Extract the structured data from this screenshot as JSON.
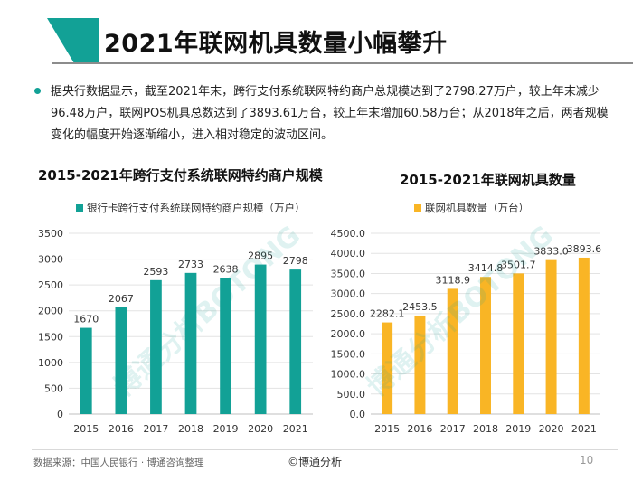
{
  "header": {
    "title": "2021年联网机具数量小幅攀升"
  },
  "summary": "据央行数据显示，截至2021年末，跨行支付系统联网特约商户总规模达到了2798.27万户，较上年末减少96.48万户，联网POS机具总数达到了3893.61万台，较上年末增加60.58万台；从2018年之后，两者规模变化的幅度开始逐渐缩小，进入相对稳定的波动区间。",
  "colors": {
    "accent": "#12a196",
    "bar_left": "#12a196",
    "bar_right": "#f9b525"
  },
  "watermark": "博通分析BOTONG",
  "chart_data": [
    {
      "type": "bar",
      "title": "2015-2021年跨行支付系统联网特约商户规模",
      "categories": [
        "2015",
        "2016",
        "2017",
        "2018",
        "2019",
        "2020",
        "2021"
      ],
      "series": [
        {
          "name": "银行卡跨行支付系统联网特约商户规模（万户）",
          "values": [
            1670,
            2067,
            2593,
            2733,
            2638,
            2895,
            2798
          ]
        }
      ],
      "value_labels": [
        "1670",
        "2067",
        "2593",
        "2733",
        "2638",
        "2895",
        "2798"
      ],
      "yticks": [
        "0",
        "500",
        "1000",
        "1500",
        "2000",
        "2500",
        "3000",
        "3500"
      ],
      "ylim": [
        0,
        3500
      ],
      "grid": true,
      "legend": "top"
    },
    {
      "type": "bar",
      "title": "2015-2021年联网机具数量",
      "categories": [
        "2015",
        "2016",
        "2017",
        "2018",
        "2019",
        "2020",
        "2021"
      ],
      "series": [
        {
          "name": "联网机具数量（万台）",
          "values": [
            2282.1,
            2453.5,
            3118.9,
            3414.8,
            3501.7,
            3833.0,
            3893.6
          ]
        }
      ],
      "value_labels": [
        "2282.1",
        "2453.5",
        "3118.9",
        "3414.8",
        "3501.7",
        "3833.0",
        "3893.6"
      ],
      "yticks": [
        "0.0",
        "500.0",
        "1000.0",
        "1500.0",
        "2000.0",
        "2500.0",
        "3000.0",
        "3500.0",
        "4000.0",
        "4500.0"
      ],
      "ylim": [
        0,
        4500
      ],
      "grid": true,
      "legend": "top"
    }
  ],
  "footer": {
    "source": "数据来源：中国人民银行 · 博通咨询整理",
    "brand": "©博通分析",
    "page": "10"
  }
}
